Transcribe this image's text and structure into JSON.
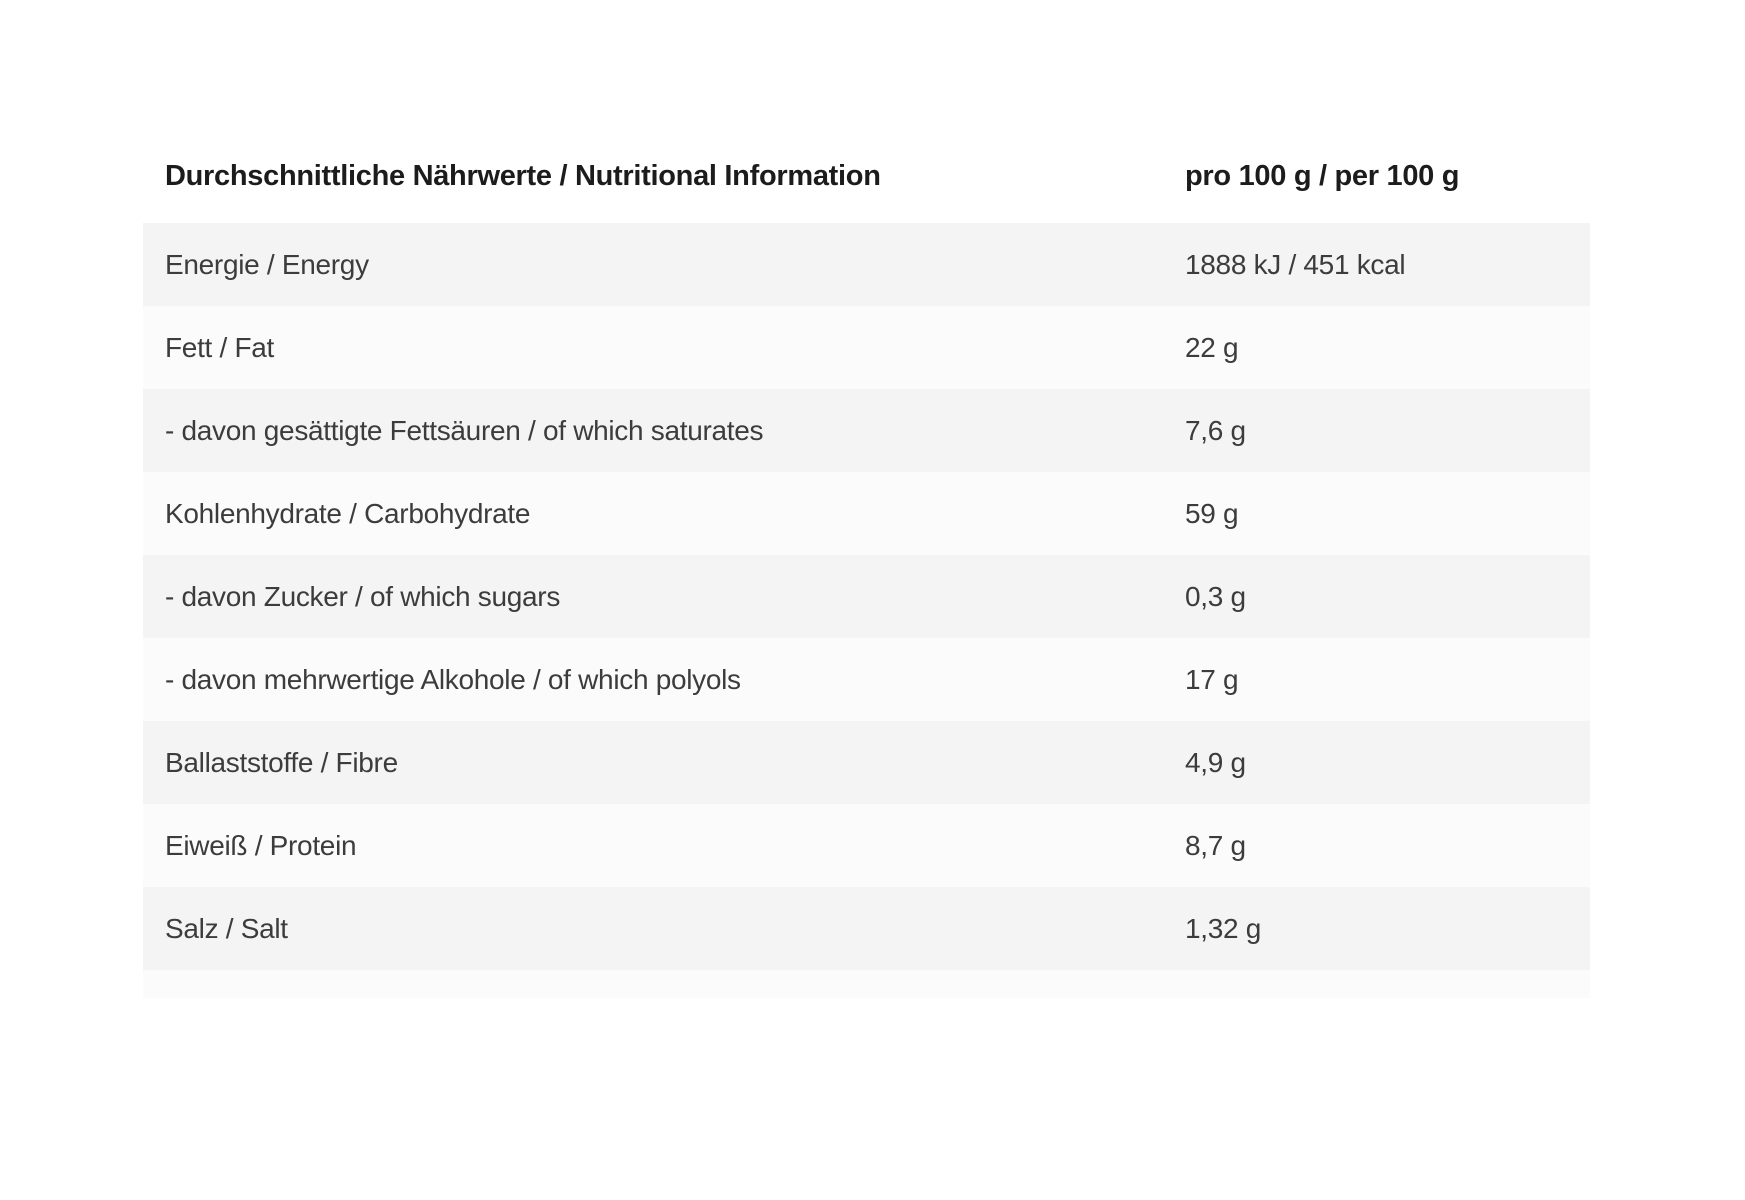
{
  "table": {
    "header": {
      "label": "Durchschnittliche Nährwerte / Nutritional Information",
      "amount": "pro 100 g / per 100 g"
    },
    "rows": [
      {
        "label": "Energie / Energy",
        "value": "1888 kJ / 451 kcal"
      },
      {
        "label": "Fett / Fat",
        "value": "22 g"
      },
      {
        "label": "- davon gesättigte Fettsäuren / of which saturates",
        "value": "7,6 g"
      },
      {
        "label": "Kohlenhydrate / Carbohydrate",
        "value": "59 g"
      },
      {
        "label": "- davon Zucker / of which sugars",
        "value": "0,3 g"
      },
      {
        "label": "- davon mehrwertige Alkohole / of which polyols",
        "value": "17 g"
      },
      {
        "label": "Ballaststoffe / Fibre",
        "value": "4,9 g"
      },
      {
        "label": "Eiweiß / Protein",
        "value": "8,7 g"
      },
      {
        "label": "Salz / Salt",
        "value": "1,32 g"
      }
    ],
    "colors": {
      "row_shaded": "#f5f4f4",
      "row_light": "#fbfbfb",
      "header_text": "#1c1c1c",
      "row_text": "#3c3c3c"
    }
  }
}
